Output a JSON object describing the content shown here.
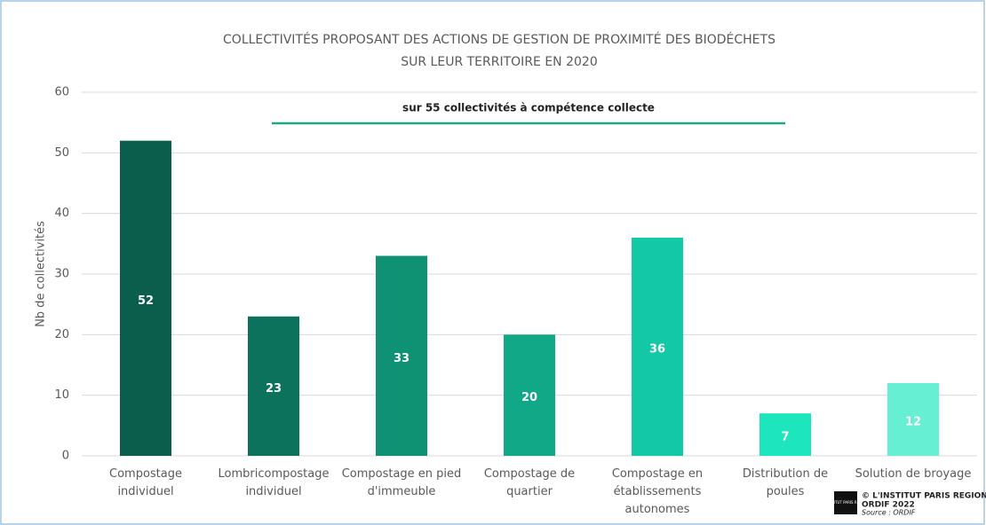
{
  "chart_data": {
    "type": "bar",
    "title": [
      "COLLECTIVITÉS PROPOSANT DES ACTIONS DE GESTION DE PROXIMITÉ DES BIODÉCHETS",
      "SUR LEUR TERRITOIRE EN 2020"
    ],
    "annotation": "sur 55 collectivités à compétence collecte",
    "y_label": "Nb de collectivités",
    "categories": [
      "Compostage\nindividuel",
      "Lombricompostage\nindividuel",
      "Compostage en pied\nd'immeuble",
      "Compostage de\nquartier",
      "Compostage en\nétablissements\nautonomes",
      "Distribution de\npoules",
      "Solution de broyage"
    ],
    "values": [
      52,
      23,
      33,
      20,
      36,
      7,
      12
    ],
    "colors": [
      "#0b5e4b",
      "#0c725b",
      "#0f9174",
      "#11a887",
      "#13c8a5",
      "#1ee6bc",
      "#66efd2"
    ],
    "ylim": [
      0,
      60
    ],
    "yticks": [
      0,
      10,
      20,
      30,
      40,
      50,
      60
    ],
    "grid": true,
    "credits": {
      "logo": "L'INSTITUT PARIS REGION",
      "lines": [
        "© L'INSTITUT PARIS REGION",
        "ORDIF 2022",
        "Source : ORDIF"
      ]
    }
  }
}
